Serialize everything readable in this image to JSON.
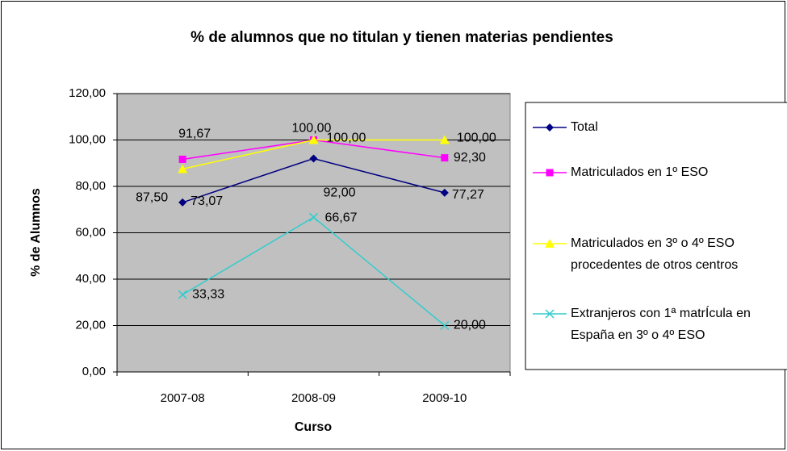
{
  "chart_data": {
    "type": "line",
    "title": "% de alumnos que no titulan y tienen materias pendientes",
    "x_label": "Curso",
    "y_label": "% de Alumnos",
    "categories": [
      "2007-08",
      "2008-09",
      "2009-10"
    ],
    "series": [
      {
        "name": "Total",
        "color": "#000080",
        "marker": "diamond",
        "values": [
          73.07,
          92.0,
          77.27
        ],
        "value_labels": [
          "73,07",
          "92,00",
          "77,27"
        ]
      },
      {
        "name": "Matriculados en 1º ESO",
        "color": "#ff00ff",
        "marker": "square",
        "values": [
          91.67,
          100.0,
          92.3
        ],
        "value_labels": [
          "91,67",
          "100,00",
          "92,30"
        ]
      },
      {
        "name": "Matriculados en 3º o 4º ESO procedentes de otros centros",
        "color": "#ffff00",
        "marker": "triangle",
        "values": [
          87.5,
          100.0,
          100.0
        ],
        "value_labels": [
          "87,50",
          "100,00",
          "100,00"
        ]
      },
      {
        "name": "Extranjeros con 1ª matrÍcula en España en 3º o 4º ESO",
        "color": "#33cccc",
        "marker": "x",
        "values": [
          33.33,
          66.67,
          20.0
        ],
        "value_labels": [
          "33,33",
          "66,67",
          "20,00"
        ]
      }
    ],
    "ylim": [
      0,
      120
    ],
    "yticks": [
      {
        "value": 0,
        "label": "0,00"
      },
      {
        "value": 20,
        "label": "20,00"
      },
      {
        "value": 40,
        "label": "40,00"
      },
      {
        "value": 60,
        "label": "60,00"
      },
      {
        "value": 80,
        "label": "80,00"
      },
      {
        "value": 100,
        "label": "100,00"
      },
      {
        "value": 120,
        "label": "120,00"
      }
    ],
    "grid": true,
    "legend": "right",
    "plot_background": "#c0c0c0"
  }
}
